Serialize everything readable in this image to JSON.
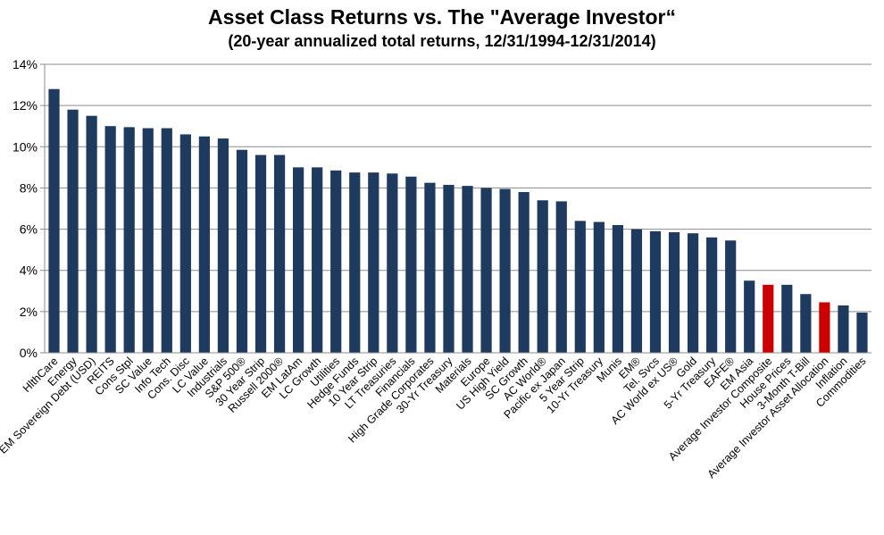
{
  "chart_data": {
    "type": "bar",
    "title": "Asset Class Returns vs. The \"Average Investor“",
    "subtitle": "(20-year annualized total returns, 12/31/1994-12/31/2014)",
    "xlabel": "",
    "ylabel": "",
    "ylim": [
      0,
      14
    ],
    "yticks": [
      "0%",
      "2%",
      "4%",
      "6%",
      "8%",
      "10%",
      "12%",
      "14%"
    ],
    "grid": true,
    "bar_color": "#1F3A5F",
    "highlight_color": "#CC0000",
    "highlighted": [
      "Average Investor Composite",
      "Average Investor Asset Allocation"
    ],
    "categories": [
      "HlthCare",
      "Energy",
      "EM Sovereign Debt (USD)",
      "REITS",
      "Cons Stpl",
      "SC Value",
      "Info Tech",
      "Cons. Disc",
      "LC Value",
      "Industrials",
      "S&P 500®",
      "30 Year Strip",
      "Russell 2000®",
      "EM LatAm",
      "LC Growth",
      "Utilities",
      "Hedge Funds",
      "10 Year Strip",
      "LT Treasuries",
      "Financials",
      "High Grade Corporates",
      "30-Yr Treasury",
      "Materials",
      "Europe",
      "US High Yield",
      "SC Growth",
      "AC World®",
      "Pacific ex Japan",
      "5 Year Strip",
      "10-Yr Treasury",
      "Munis",
      "EM®",
      "Tel. Svcs",
      "AC World ex US®",
      "Gold",
      "5-Yr Treasury",
      "EAFE®",
      "EM Asia",
      "Average Investor Composite",
      "House Prices",
      "3-Month T-Bill",
      "Average Investor Asset Allocation",
      "Inflation",
      "Commodities"
    ],
    "values": [
      12.8,
      11.8,
      11.5,
      11.0,
      10.95,
      10.9,
      10.9,
      10.6,
      10.5,
      10.4,
      9.85,
      9.6,
      9.6,
      9.0,
      9.0,
      8.85,
      8.75,
      8.75,
      8.7,
      8.55,
      8.25,
      8.15,
      8.1,
      8.0,
      7.95,
      7.8,
      7.4,
      7.35,
      6.4,
      6.35,
      6.2,
      6.0,
      5.9,
      5.85,
      5.8,
      5.6,
      5.45,
      3.5,
      3.3,
      3.3,
      2.85,
      2.45,
      2.3,
      1.95
    ]
  }
}
